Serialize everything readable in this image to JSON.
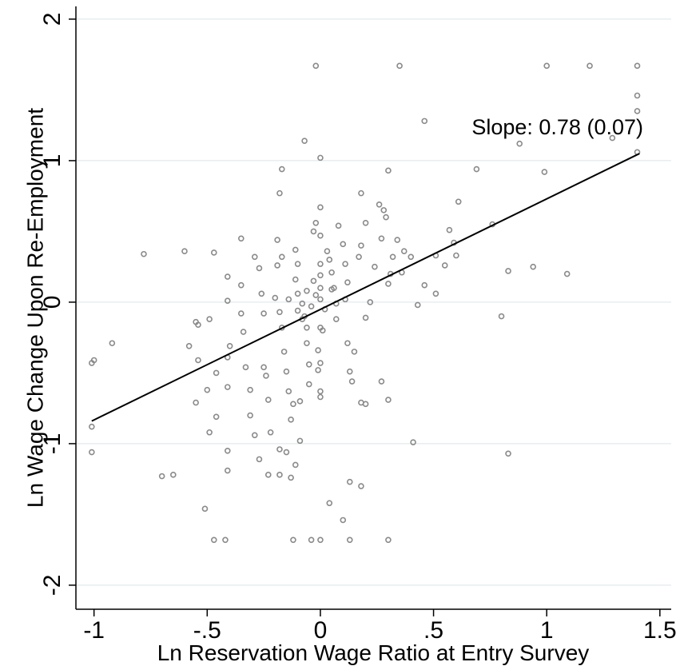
{
  "chart_data": {
    "type": "scatter",
    "x_label": "Ln Reservation Wage Ratio at Entry Survey",
    "y_label": "Ln Wage Change Upon Re-Employment",
    "annotation": "Slope: 0.78 (0.07)",
    "xlim": [
      -1.08,
      1.55
    ],
    "ylim": [
      -2.17,
      2.09
    ],
    "xticks": [
      -1,
      {
        "value": -0.5,
        "label": "-.5"
      },
      0,
      {
        "value": 0.5,
        "label": ".5"
      },
      1,
      1.5
    ],
    "yticks": [
      -2,
      -1,
      0,
      1,
      2
    ],
    "grid": true,
    "color": "#8a8a8a",
    "line_color": "#000000",
    "fit_line": {
      "x": [
        -1.01,
        1.41
      ],
      "y": [
        -0.84,
        1.05
      ]
    },
    "x": [
      -1.0,
      -1.01,
      -1.01,
      -1.01,
      -0.92,
      -0.78,
      -0.6,
      -0.7,
      -0.65,
      -0.51,
      -0.47,
      -0.42,
      -0.12,
      -0.04,
      0,
      0.13,
      0.3,
      -0.02,
      0.35,
      1,
      1.19,
      1.4,
      1.4,
      1.4,
      1.4,
      1.29,
      0.88,
      0.46,
      -0.07,
      0,
      -0.17,
      0.3,
      0.69,
      0.99,
      -0.18,
      0.18,
      0.61,
      0.76,
      0.57,
      0.59,
      0.6,
      0.51,
      0.55,
      0.94,
      1.09,
      0.83,
      0.8,
      0.83,
      0.41,
      0.51,
      0.43,
      0.46,
      0.13,
      0.18,
      0.04,
      0.1,
      -0.11,
      -0.13,
      -0.18,
      -0.23,
      -0.27,
      -0.18,
      -0.15,
      -0.09,
      -0.41,
      -0.41,
      -0.58,
      -0.55,
      -0.54,
      -0.49,
      -0.54,
      -0.46,
      -0.5,
      -0.55,
      -0.49,
      -0.46,
      -0.47,
      -0.41,
      -0.41,
      -0.4,
      -0.41,
      -0.41,
      -0.35,
      -0.35,
      -0.35,
      -0.34,
      -0.33,
      -0.31,
      -0.31,
      -0.29,
      -0.29,
      -0.27,
      -0.26,
      -0.25,
      -0.25,
      -0.24,
      -0.23,
      -0.22,
      -0.19,
      -0.19,
      -0.17,
      -0.2,
      -0.18,
      -0.17,
      -0.16,
      -0.15,
      -0.14,
      -0.13,
      -0.11,
      -0.1,
      -0.11,
      -0.1,
      -0.08,
      -0.07,
      -0.06,
      -0.06,
      -0.05,
      -0.05,
      -0.03,
      -0.02,
      0,
      0,
      0,
      0,
      0,
      0,
      0,
      -0.01,
      0,
      0,
      0,
      0.03,
      0.05,
      0.06,
      0.07,
      0.07,
      0.08,
      0.1,
      0.11,
      0.12,
      0.11,
      0.12,
      0.13,
      0.14,
      0.15,
      0.17,
      0.18,
      0.2,
      0.2,
      0.22,
      0.24,
      0.26,
      0.27,
      0.28,
      0.29,
      0.3,
      0.31,
      0.32,
      0.34,
      0.36,
      0.37,
      0.4,
      0.27,
      0.3,
      0.18,
      0.2,
      -0.09,
      -0.12,
      -0.01,
      -0.02,
      0.02,
      -0.04,
      -0.06,
      0.01,
      -0.03,
      -0.08,
      0.04,
      -0.14,
      -0.1,
      0.05
    ],
    "y": [
      -0.41,
      -0.43,
      -0.88,
      -1.06,
      -0.29,
      0.34,
      0.36,
      -1.23,
      -1.22,
      -1.46,
      -1.68,
      -1.68,
      -1.68,
      -1.68,
      -1.68,
      -1.68,
      -1.68,
      1.67,
      1.67,
      1.67,
      1.67,
      1.67,
      1.46,
      1.35,
      1.06,
      1.16,
      1.12,
      1.28,
      1.14,
      1.02,
      0.94,
      0.93,
      0.94,
      0.92,
      0.77,
      0.77,
      0.71,
      0.55,
      0.51,
      0.42,
      0.33,
      0.33,
      0.26,
      0.25,
      0.2,
      0.22,
      -0.1,
      -1.07,
      -0.99,
      0.06,
      -0.02,
      0.12,
      -1.27,
      -1.3,
      -1.42,
      -1.54,
      -1.15,
      -1.24,
      -1.22,
      -1.22,
      -1.11,
      -1.04,
      -1.06,
      -0.98,
      -1.05,
      -1.19,
      -0.31,
      -0.14,
      -0.16,
      -0.12,
      -0.41,
      -0.5,
      -0.62,
      -0.71,
      -0.92,
      -0.81,
      0.35,
      0.18,
      0.01,
      -0.31,
      -0.39,
      -0.6,
      0.45,
      0.12,
      -0.08,
      -0.21,
      -0.46,
      -0.62,
      -0.8,
      -0.94,
      0.32,
      0.24,
      0.06,
      -0.08,
      -0.46,
      -0.52,
      -0.69,
      -0.92,
      0.26,
      0.44,
      0.32,
      0.03,
      -0.07,
      -0.18,
      -0.35,
      -0.49,
      -0.63,
      -0.83,
      0.37,
      0.27,
      0.16,
      0.06,
      -0.01,
      -0.1,
      -0.18,
      -0.29,
      -0.44,
      -0.58,
      0.5,
      0.56,
      0.47,
      0.27,
      0.19,
      0.1,
      0.02,
      0.67,
      -0.18,
      -0.34,
      -0.43,
      -0.63,
      -0.67,
      0.36,
      0.21,
      0.1,
      -0.01,
      -0.12,
      0.54,
      0.41,
      0.27,
      0.14,
      0.02,
      -0.29,
      -0.49,
      -0.56,
      -0.35,
      0.32,
      0.4,
      -0.11,
      0.56,
      0,
      0.25,
      0.69,
      0.45,
      0.65,
      0.6,
      0.13,
      0.2,
      0.32,
      0.44,
      0.21,
      0.36,
      0.32,
      -0.56,
      -0.69,
      -0.71,
      -0.72,
      -0.7,
      -0.72,
      -0.48,
      0.05,
      -0.05,
      -0.03,
      0.08,
      -0.2,
      0.15,
      -0.12,
      0.3,
      0.02,
      -0.06,
      0.09
    ]
  }
}
